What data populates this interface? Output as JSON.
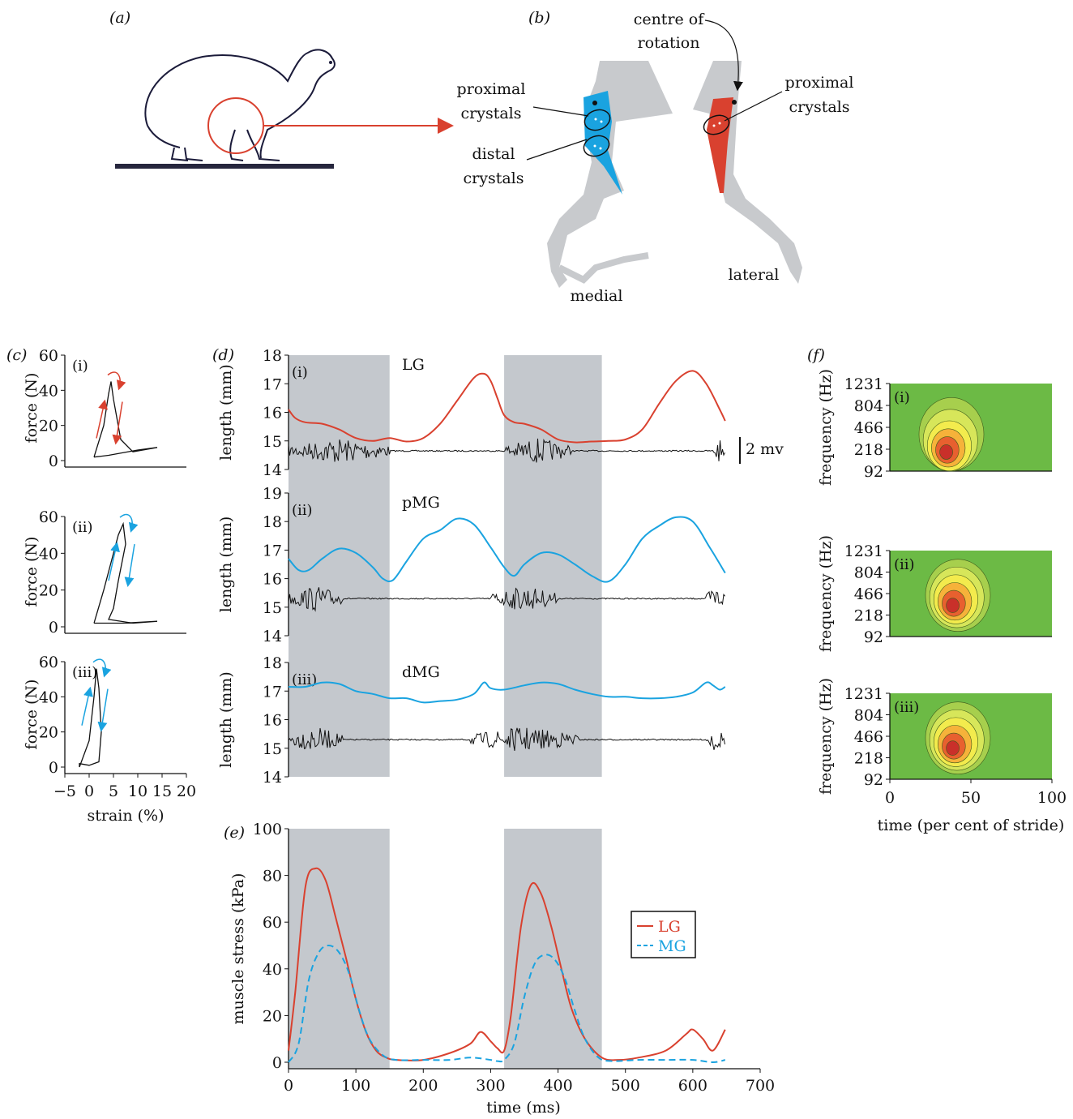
{
  "panel_labels": {
    "a": "(a)",
    "b": "(b)",
    "c": "(c)",
    "d": "(d)",
    "e": "(e)",
    "f": "(f)"
  },
  "anatomy": {
    "centre_of_rotation_line1": "centre of",
    "centre_of_rotation_line2": "rotation",
    "proximal_left_line1": "proximal",
    "proximal_left_line2": "crystals",
    "distal_line1": "distal",
    "distal_line2": "crystals",
    "proximal_right_line1": "proximal",
    "proximal_right_line2": "crystals",
    "medial": "medial",
    "lateral": "lateral",
    "colors": {
      "medial_muscle": "#1aa3e0",
      "lateral_muscle": "#d9412f",
      "bone": "#c8cacd",
      "bird_outline": "#1b1b3a",
      "arrow": "#d9412f"
    }
  },
  "scale_bar_label": "2 mv",
  "colors": {
    "LG": "#d9412f",
    "MG": "#1aa3e0",
    "stance_shading": "#c4c8cd",
    "emg": "#111111",
    "spectro_bg": "#6cba45"
  },
  "chart_data": [
    {
      "id": "c",
      "type": "line",
      "xlabel": "strain (%)",
      "ylabel": "force (N)",
      "xlim": [
        -5,
        20
      ],
      "ylim": [
        0,
        60
      ],
      "xticks": [
        "−5",
        "0",
        "5",
        "10",
        "15",
        "20"
      ],
      "yticks": [
        "0",
        "20",
        "40",
        "60"
      ],
      "subplots": [
        {
          "label": "(i)",
          "color": "#d9412f",
          "loop": [
            [
              1,
              2
            ],
            [
              3,
              20
            ],
            [
              4,
              38
            ],
            [
              4.5,
              45
            ],
            [
              5,
              35
            ],
            [
              6.5,
              12
            ],
            [
              9,
              5
            ],
            [
              14,
              7.5
            ],
            [
              10,
              6
            ],
            [
              4,
              3
            ],
            [
              1,
              2
            ]
          ]
        },
        {
          "label": "(ii)",
          "color": "#1aa3e0",
          "loop": [
            [
              1,
              2
            ],
            [
              3,
              20
            ],
            [
              6,
              50
            ],
            [
              7,
              56
            ],
            [
              7.5,
              45
            ],
            [
              6,
              25
            ],
            [
              5,
              10
            ],
            [
              4,
              4
            ],
            [
              9,
              2
            ],
            [
              14,
              3
            ],
            [
              7,
              2
            ],
            [
              1,
              2
            ]
          ]
        },
        {
          "label": "(iii)",
          "color": "#1aa3e0",
          "loop": [
            [
              -2,
              0
            ],
            [
              0,
              15
            ],
            [
              1,
              40
            ],
            [
              1.5,
              56
            ],
            [
              2,
              45
            ],
            [
              2.5,
              20
            ],
            [
              2,
              3
            ],
            [
              0,
              1
            ],
            [
              -2,
              2
            ],
            [
              -2,
              0
            ]
          ]
        }
      ]
    },
    {
      "id": "d",
      "type": "line",
      "ylabel": "length (mm)",
      "xlim": [
        0,
        700
      ],
      "stance_phases": [
        [
          0,
          150
        ],
        [
          320,
          465
        ]
      ],
      "subplots": [
        {
          "label": "(i)",
          "muscle": "LG",
          "color": "#d9412f",
          "ylim": [
            14,
            18
          ],
          "yticks": [
            "14",
            "15",
            "16",
            "17",
            "18"
          ],
          "x": [
            0,
            10,
            25,
            50,
            75,
            100,
            125,
            150,
            175,
            200,
            225,
            250,
            275,
            290,
            300,
            310,
            320,
            335,
            350,
            375,
            400,
            425,
            450,
            475,
            500,
            525,
            550,
            575,
            600,
            620,
            640,
            648
          ],
          "y": [
            16.1,
            15.8,
            15.65,
            15.6,
            15.4,
            15.1,
            15.0,
            15.1,
            14.98,
            15.1,
            15.6,
            16.4,
            17.2,
            17.35,
            17.1,
            16.5,
            15.9,
            15.65,
            15.6,
            15.4,
            15.05,
            14.95,
            14.98,
            15.0,
            15.05,
            15.4,
            16.3,
            17.1,
            17.45,
            17.0,
            16.1,
            15.7
          ],
          "emg_bursts": [
            [
              0,
              150
            ],
            [
              320,
              420
            ],
            [
              630,
              648
            ]
          ]
        },
        {
          "label": "(ii)",
          "muscle": "pMG",
          "color": "#1aa3e0",
          "ylim": [
            14,
            19
          ],
          "yticks": [
            "14",
            "15",
            "16",
            "17",
            "18",
            "19"
          ],
          "x": [
            0,
            15,
            30,
            50,
            75,
            100,
            125,
            140,
            155,
            175,
            200,
            225,
            250,
            275,
            300,
            320,
            335,
            350,
            375,
            400,
            425,
            450,
            475,
            500,
            525,
            550,
            575,
            600,
            625,
            648
          ],
          "y": [
            16.7,
            16.3,
            16.3,
            16.7,
            17.05,
            16.9,
            16.4,
            16.0,
            15.95,
            16.6,
            17.4,
            17.7,
            18.1,
            17.9,
            17.1,
            16.4,
            16.1,
            16.5,
            16.9,
            16.85,
            16.5,
            16.1,
            15.9,
            16.5,
            17.4,
            17.85,
            18.15,
            18.0,
            17.1,
            16.2
          ],
          "emg_bursts": [
            [
              0,
              80
            ],
            [
              300,
              400
            ],
            [
              620,
              648
            ]
          ]
        },
        {
          "label": "(iii)",
          "muscle": "dMG",
          "color": "#1aa3e0",
          "ylim": [
            14,
            18
          ],
          "yticks": [
            "14",
            "15",
            "16",
            "17",
            "18"
          ],
          "x": [
            0,
            25,
            50,
            75,
            100,
            125,
            150,
            175,
            200,
            225,
            250,
            275,
            290,
            300,
            320,
            350,
            375,
            400,
            425,
            450,
            475,
            500,
            525,
            550,
            575,
            600,
            620,
            630,
            640,
            648
          ],
          "y": [
            17.15,
            17.15,
            17.3,
            17.25,
            17.0,
            16.9,
            16.75,
            16.75,
            16.6,
            16.65,
            16.7,
            16.9,
            17.3,
            17.1,
            17.05,
            17.2,
            17.3,
            17.25,
            17.05,
            16.9,
            16.8,
            16.8,
            16.75,
            16.75,
            16.8,
            16.95,
            17.3,
            17.2,
            17.05,
            17.15
          ],
          "emg_bursts": [
            [
              0,
              80
            ],
            [
              270,
              430
            ],
            [
              620,
              648
            ]
          ]
        }
      ]
    },
    {
      "id": "e",
      "type": "line",
      "xlabel": "time (ms)",
      "ylabel": "muscle stress (kPa)",
      "xlim": [
        0,
        700
      ],
      "ylim": [
        0,
        100
      ],
      "xticks": [
        "0",
        "100",
        "200",
        "300",
        "400",
        "500",
        "600",
        "700"
      ],
      "yticks": [
        "0",
        "20",
        "40",
        "60",
        "80",
        "100"
      ],
      "stance_phases": [
        [
          0,
          150
        ],
        [
          320,
          465
        ]
      ],
      "legend": "right",
      "series": [
        {
          "name": "LG",
          "color": "#d9412f",
          "dash": false,
          "x": [
            0,
            10,
            25,
            40,
            55,
            70,
            85,
            100,
            115,
            130,
            145,
            160,
            200,
            240,
            270,
            285,
            300,
            310,
            320,
            330,
            345,
            360,
            375,
            390,
            405,
            420,
            440,
            465,
            490,
            520,
            560,
            590,
            600,
            615,
            630,
            648
          ],
          "y": [
            5,
            30,
            75,
            83,
            78,
            62,
            45,
            27,
            13,
            5,
            2,
            1,
            1,
            4,
            8,
            13,
            9,
            6,
            5,
            20,
            58,
            76,
            72,
            58,
            40,
            23,
            10,
            2,
            1,
            2,
            5,
            12,
            14,
            10,
            5,
            14
          ]
        },
        {
          "name": "MG",
          "color": "#1aa3e0",
          "dash": true,
          "x": [
            0,
            15,
            30,
            45,
            60,
            75,
            90,
            105,
            120,
            140,
            160,
            200,
            240,
            270,
            300,
            310,
            320,
            335,
            350,
            365,
            380,
            395,
            410,
            425,
            440,
            460,
            480,
            520,
            560,
            600,
            630,
            648
          ],
          "y": [
            0,
            8,
            35,
            47,
            50,
            47,
            38,
            22,
            10,
            3,
            1,
            1,
            1,
            2,
            1,
            0.5,
            1,
            8,
            28,
            42,
            46,
            44,
            36,
            22,
            10,
            2,
            0.5,
            1,
            1,
            1,
            0,
            1
          ]
        }
      ]
    },
    {
      "id": "f",
      "type": "heatmap",
      "xlabel": "time (per cent of stride)",
      "ylabel": "frequency (Hz)",
      "xlim": [
        0,
        100
      ],
      "xticks": [
        "0",
        "50",
        "100"
      ],
      "yticks": [
        "92",
        "218",
        "466",
        "804",
        "1231"
      ],
      "subplots": [
        {
          "label": "(i)",
          "peak_time": 38,
          "peak_freq_hz": 150
        },
        {
          "label": "(ii)",
          "peak_time": 42,
          "peak_freq_hz": 218
        },
        {
          "label": "(iii)",
          "peak_time": 42,
          "peak_freq_hz": 218
        }
      ]
    }
  ]
}
